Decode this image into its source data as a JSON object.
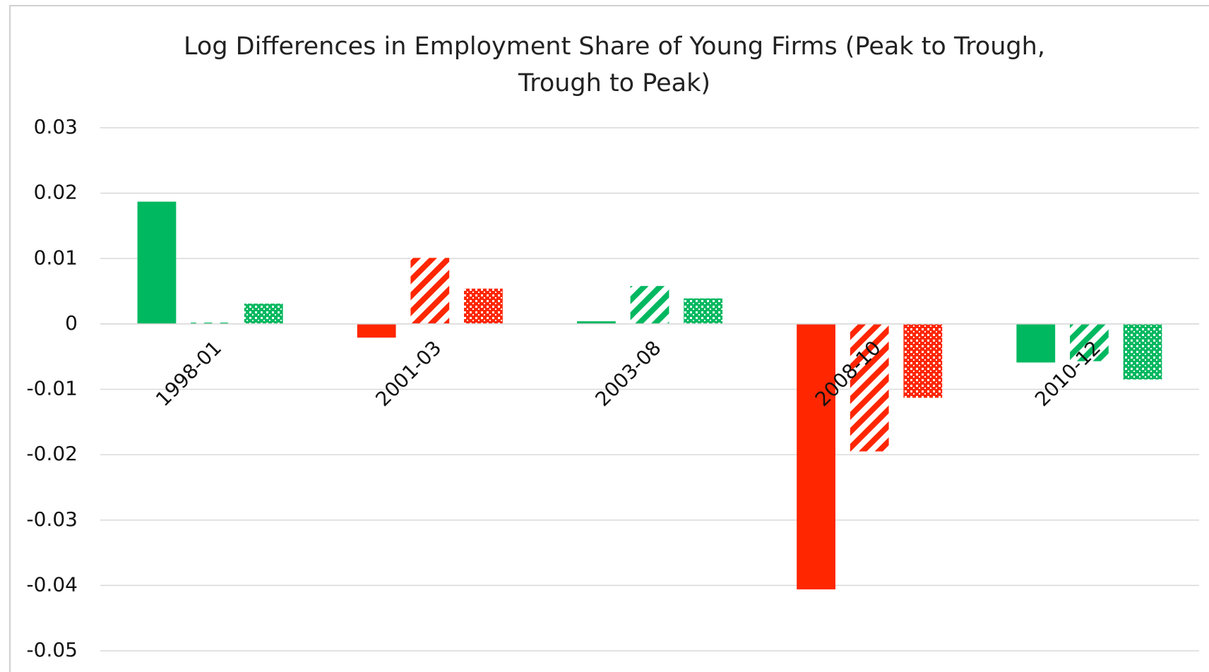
{
  "chart_data": {
    "type": "bar",
    "title": "Log Differences in Employment Share of  Young Firms (Peak to Trough, Trough to Peak)",
    "categories": [
      "1998-01",
      "2001-03",
      "2003-08",
      "2008-10",
      "2010-12"
    ],
    "series": [
      {
        "pattern": "solid",
        "colors": [
          "#00b860",
          "#ff2600",
          "#00b860",
          "#ff2600",
          "#00b860"
        ],
        "values": [
          0.0187,
          -0.0021,
          0.0004,
          -0.0406,
          -0.0059
        ]
      },
      {
        "pattern": "stripes",
        "colors": [
          "#00b860",
          "#ff2600",
          "#00b860",
          "#ff2600",
          "#00b860"
        ],
        "values": [
          0.0002,
          0.0101,
          0.0058,
          -0.0195,
          -0.0057
        ]
      },
      {
        "pattern": "dots",
        "colors": [
          "#00b860",
          "#ff2600",
          "#00b860",
          "#ff2600",
          "#00b860"
        ],
        "values": [
          0.0031,
          0.0054,
          0.0039,
          -0.0113,
          -0.0085
        ]
      }
    ],
    "ylim": [
      -0.05,
      0.03
    ],
    "yticks": [
      -0.05,
      -0.04,
      -0.03,
      -0.02,
      -0.01,
      0,
      0.01,
      0.02,
      0.03
    ],
    "grid": true
  }
}
